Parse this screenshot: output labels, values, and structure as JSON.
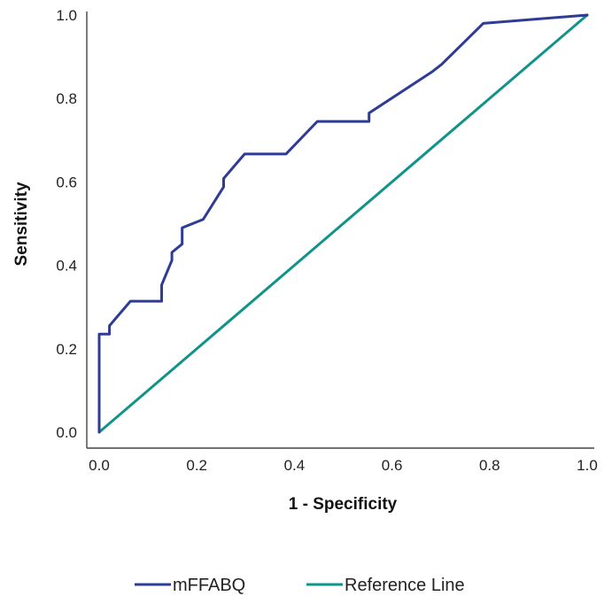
{
  "chart_data": {
    "type": "line",
    "title": "",
    "xlabel": "1 - Specificity",
    "ylabel": "Sensitivity",
    "xlim": [
      0,
      1
    ],
    "ylim": [
      0,
      1
    ],
    "xticks": [
      0,
      0.2,
      0.4,
      0.6,
      0.8,
      1
    ],
    "yticks": [
      0,
      0.2,
      0.4,
      0.6,
      0.8,
      1
    ],
    "xtick_labels": [
      "0.0",
      "0.2",
      "0.4",
      "0.6",
      "0.8",
      "1.0"
    ],
    "ytick_labels": [
      "0.0",
      "0.2",
      "0.4",
      "0.6",
      "0.8",
      "1.0"
    ],
    "grid": false,
    "legend_position": "bottom",
    "series": [
      {
        "name": "mFFABQ",
        "color": "#2e3b97",
        "x": [
          0,
          0,
          0.021,
          0.021,
          0.064,
          0.128,
          0.128,
          0.149,
          0.149,
          0.17,
          0.17,
          0.213,
          0.255,
          0.255,
          0.298,
          0.383,
          0.447,
          0.553,
          0.553,
          0.681,
          0.702,
          0.787,
          1
        ],
        "y": [
          0,
          0.235,
          0.235,
          0.255,
          0.314,
          0.314,
          0.353,
          0.412,
          0.431,
          0.451,
          0.49,
          0.51,
          0.588,
          0.608,
          0.667,
          0.667,
          0.745,
          0.745,
          0.765,
          0.863,
          0.882,
          0.98,
          1
        ]
      },
      {
        "name": "Reference Line",
        "color": "#109389",
        "x": [
          0,
          1
        ],
        "y": [
          0,
          1
        ]
      }
    ]
  }
}
